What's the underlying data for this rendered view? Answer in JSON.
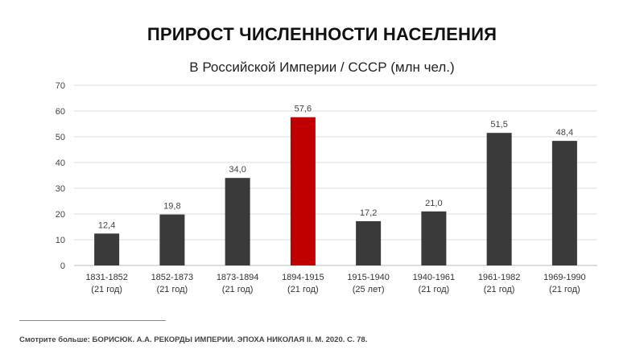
{
  "title": "ПРИРОСТ ЧИСЛЕННОСТИ НАСЕЛЕНИЯ",
  "subtitle": "В Российской Империи / СССР (млн чел.)",
  "source": "Смотрите больше: БОРИСЮК. А.А. РЕКОРДЫ ИМПЕРИИ. ЭПОХА НИКОЛАЯ II. М. 2020. С. 78.",
  "colors": {
    "bar": "#3a3a3a",
    "highlight": "#c00000",
    "grid": "#dddddd",
    "axis_text": "#444444"
  },
  "chart_data": {
    "type": "bar",
    "title": "ПРИРОСТ ЧИСЛЕННОСТИ НАСЕЛЕНИЯ",
    "subtitle": "В Российской Империи / СССР (млн чел.)",
    "categories": [
      "1831-1852",
      "1852-1873",
      "1873-1894",
      "1894-1915",
      "1915-1940",
      "1940-1961",
      "1961-1982",
      "1969-1990"
    ],
    "category_sublabels": [
      "(21 год)",
      "(21 год)",
      "(21 год)",
      "(21 год)",
      "(25 лет)",
      "(21 год)",
      "(21 год)",
      "(21 год)"
    ],
    "values": [
      12.4,
      19.8,
      34.0,
      57.6,
      17.2,
      21.0,
      51.5,
      48.4
    ],
    "value_labels": [
      "12,4",
      "19,8",
      "34,0",
      "57,6",
      "17,2",
      "21,0",
      "51,5",
      "48,4"
    ],
    "highlight_index": 3,
    "ylim": [
      0,
      70
    ],
    "yticks": [
      0,
      10,
      20,
      30,
      40,
      50,
      60,
      70
    ],
    "xlabel": "",
    "ylabel": "",
    "grid": true,
    "legend": "none"
  }
}
